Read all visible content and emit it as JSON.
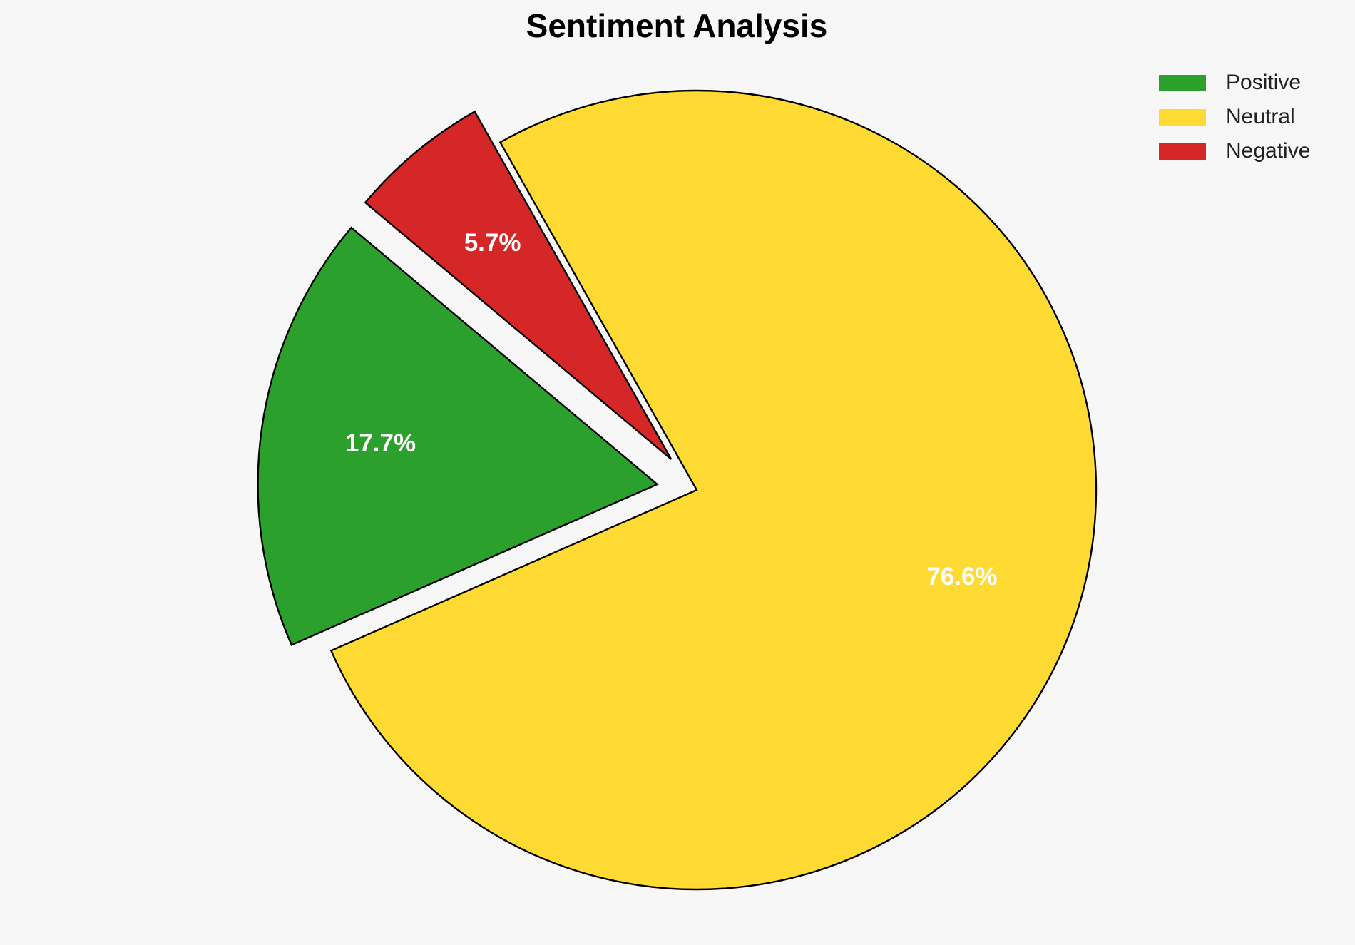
{
  "chart_data": {
    "type": "pie",
    "title": "Sentiment Analysis",
    "categories": [
      "Positive",
      "Neutral",
      "Negative"
    ],
    "values": [
      17.7,
      76.6,
      5.7
    ],
    "value_labels": [
      "17.7%",
      "76.6%",
      "5.7%"
    ],
    "colors": [
      "#2ca02c",
      "#ffda33",
      "#d62728"
    ],
    "explode": [
      0.1,
      0,
      0.1
    ],
    "startangle": 140,
    "legend": "upper right"
  }
}
